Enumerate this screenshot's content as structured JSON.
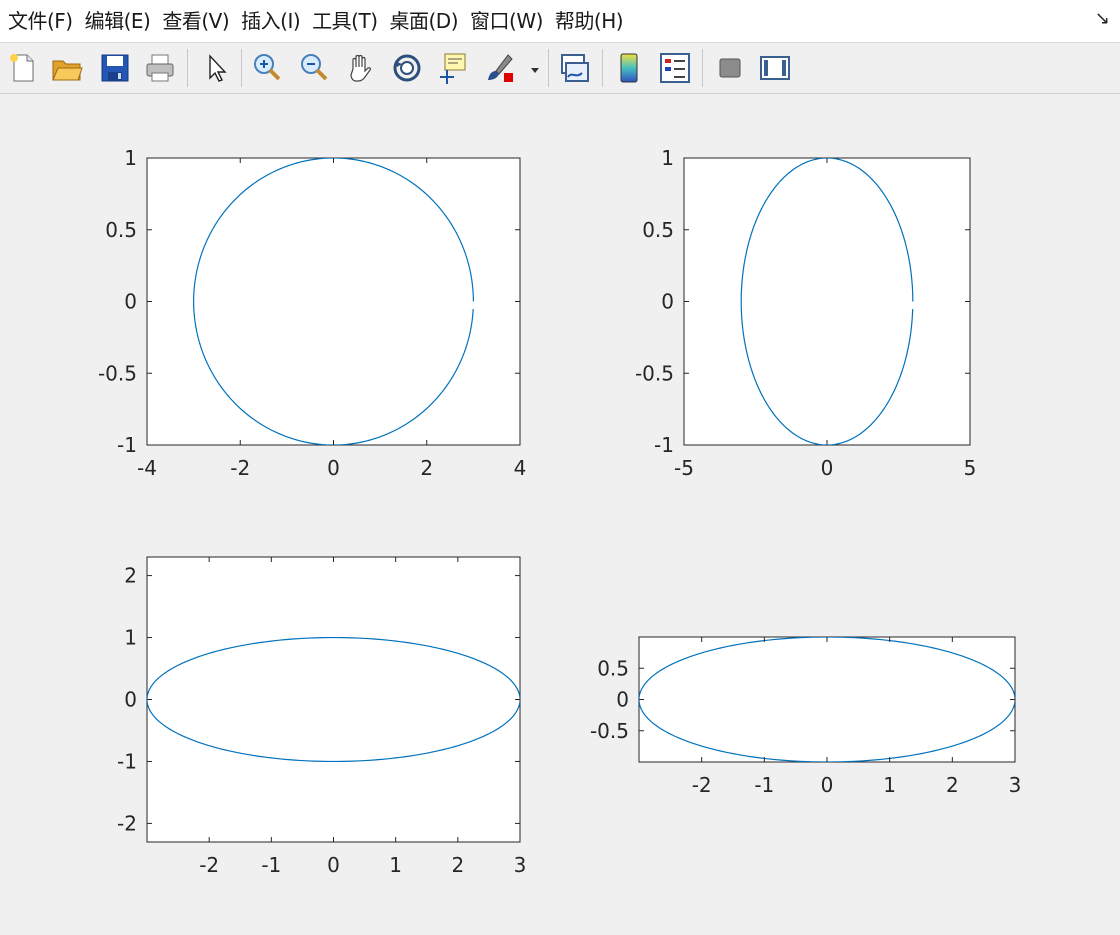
{
  "menu": [
    "文件(F)",
    "编辑(E)",
    "查看(V)",
    "插入(I)",
    "工具(T)",
    "桌面(D)",
    "窗口(W)",
    "帮助(H)"
  ],
  "toolbar": [
    "new-file-icon",
    "open-folder-icon",
    "save-icon",
    "print-icon",
    "pointer-icon",
    "zoom-in-icon",
    "zoom-out-icon",
    "pan-hand-icon",
    "rotate-3d-icon",
    "data-cursor-icon",
    "brush-icon",
    "brush-dropdown-icon",
    "link-plot-icon",
    "colorbar-icon",
    "legend-icon",
    "hide-plot-tools-icon",
    "show-plot-tools-icon"
  ],
  "line_color": "#0072bd",
  "chart_data": [
    {
      "type": "line",
      "series": [
        {
          "parametric": "x = 3*cos(t), y = sin(t)",
          "x_min": -3,
          "x_max": 3,
          "y_min": -1,
          "y_max": 1
        }
      ],
      "xlim": [
        -4,
        4
      ],
      "ylim": [
        -1,
        1
      ],
      "xticks": [
        "-4",
        "-2",
        "0",
        "2",
        "4"
      ],
      "yticks": [
        "1",
        "0.5",
        "0",
        "-0.5",
        "-1"
      ]
    },
    {
      "type": "line",
      "series": [
        {
          "parametric": "x = 3*cos(t), y = sin(t)",
          "x_min": -3,
          "x_max": 3,
          "y_min": -1,
          "y_max": 1
        }
      ],
      "xlim": [
        -5,
        5
      ],
      "ylim": [
        -1,
        1
      ],
      "xticks": [
        "-5",
        "0",
        "5"
      ],
      "yticks": [
        "1",
        "0.5",
        "0",
        "-0.5",
        "-1"
      ]
    },
    {
      "type": "line",
      "series": [
        {
          "parametric": "x = 3*cos(t), y = sin(t)",
          "x_min": -3,
          "x_max": 3,
          "y_min": -1,
          "y_max": 1
        }
      ],
      "xlim": [
        -3,
        3
      ],
      "ylim": [
        -2.3,
        2.3
      ],
      "xticks": [
        "-2",
        "-1",
        "0",
        "1",
        "2",
        "3"
      ],
      "yticks": [
        "2",
        "1",
        "0",
        "-1",
        "-2"
      ]
    },
    {
      "type": "line",
      "series": [
        {
          "parametric": "x = 3*cos(t), y = sin(t)",
          "x_min": -3,
          "x_max": 3,
          "y_min": -1,
          "y_max": 1
        }
      ],
      "xlim": [
        -3,
        3
      ],
      "ylim": [
        -1,
        1
      ],
      "xticks": [
        "-2",
        "-1",
        "0",
        "1",
        "2",
        "3"
      ],
      "yticks": [
        "0.5",
        "0",
        "-0.5"
      ]
    }
  ]
}
